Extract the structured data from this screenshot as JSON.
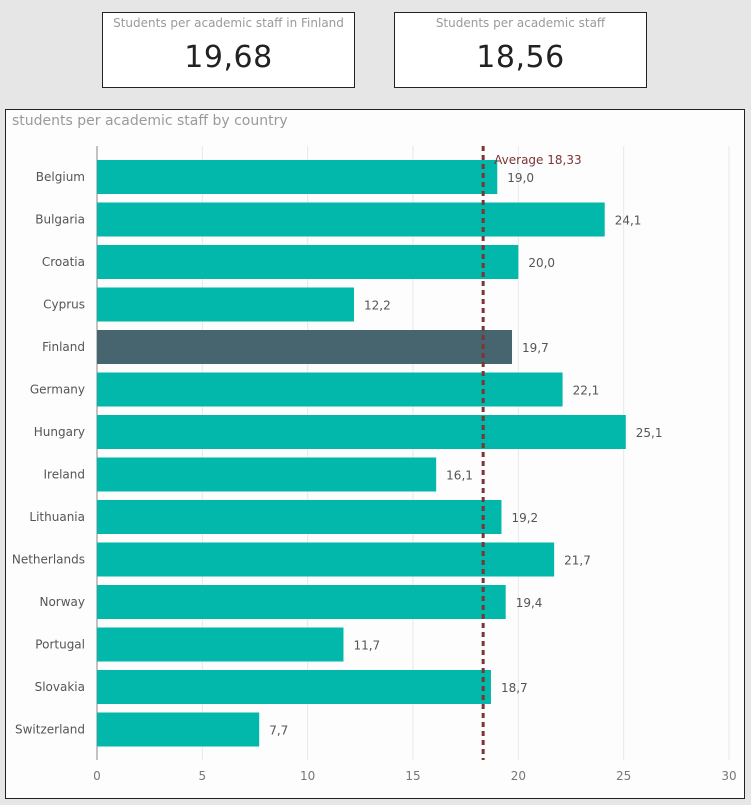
{
  "cards": {
    "finland": {
      "title": "Students per academic staff in Finland",
      "value": "19,68"
    },
    "overall": {
      "title": "Students per academic staff",
      "value": "18,56"
    }
  },
  "chart_data": {
    "type": "bar",
    "orientation": "horizontal",
    "title": "students per academic staff by country",
    "categories": [
      "Belgium",
      "Bulgaria",
      "Croatia",
      "Cyprus",
      "Finland",
      "Germany",
      "Hungary",
      "Ireland",
      "Lithuania",
      "Netherlands",
      "Norway",
      "Portugal",
      "Slovakia",
      "Switzerland"
    ],
    "values": [
      19.0,
      24.1,
      20.0,
      12.2,
      19.7,
      22.1,
      25.1,
      16.1,
      19.2,
      21.7,
      19.4,
      11.7,
      18.7,
      7.7
    ],
    "data_labels": [
      "19,0",
      "24,1",
      "20,0",
      "12,2",
      "19,7",
      "22,1",
      "25,1",
      "16,1",
      "19,2",
      "21,7",
      "19,4",
      "11,7",
      "18,7",
      "7,7"
    ],
    "highlight_category": "Finland",
    "xlim": [
      0,
      30
    ],
    "xticks": [
      0,
      5,
      10,
      15,
      20,
      25,
      30
    ],
    "grid": true,
    "reference_line": {
      "label": "Average 18,33",
      "value": 18.33,
      "color": "#7b3535"
    },
    "colors": {
      "bar": "#01b8aa",
      "highlight": "#46656f",
      "grid": "#e8e8e8",
      "axis": "#888888"
    }
  }
}
